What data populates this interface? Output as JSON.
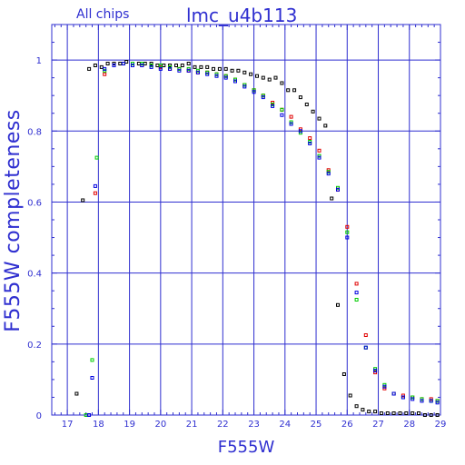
{
  "chart_data": {
    "type": "scatter",
    "title": "lmc_u4b113",
    "subtitle": "All chips",
    "xlabel": "F555W",
    "ylabel": "F555W  completeness",
    "xlim": [
      16.5,
      29
    ],
    "ylim": [
      0,
      1.1
    ],
    "x_ticks": [
      "17",
      "18",
      "19",
      "20",
      "21",
      "22",
      "23",
      "24",
      "25",
      "26",
      "27",
      "28",
      "29"
    ],
    "y_ticks": [
      "0",
      "0.2",
      "0.4",
      "0.6",
      "0.8",
      "1"
    ],
    "grid": true,
    "series": [
      {
        "color": "#000000",
        "points": [
          [
            17.3,
            0.06
          ],
          [
            17.5,
            0.605
          ],
          [
            17.7,
            0.975
          ],
          [
            17.9,
            0.985
          ],
          [
            18.1,
            0.98
          ],
          [
            18.3,
            0.99
          ],
          [
            18.5,
            0.99
          ],
          [
            18.7,
            0.99
          ],
          [
            18.9,
            0.995
          ],
          [
            19.1,
            0.99
          ],
          [
            19.3,
            0.99
          ],
          [
            19.5,
            0.99
          ],
          [
            19.7,
            0.99
          ],
          [
            19.9,
            0.985
          ],
          [
            20.1,
            0.985
          ],
          [
            20.3,
            0.985
          ],
          [
            20.5,
            0.985
          ],
          [
            20.7,
            0.985
          ],
          [
            20.9,
            0.99
          ],
          [
            21.1,
            0.98
          ],
          [
            21.3,
            0.98
          ],
          [
            21.5,
            0.98
          ],
          [
            21.7,
            0.975
          ],
          [
            21.9,
            0.975
          ],
          [
            22.1,
            0.975
          ],
          [
            22.3,
            0.97
          ],
          [
            22.5,
            0.97
          ],
          [
            22.7,
            0.965
          ],
          [
            22.9,
            0.96
          ],
          [
            23.1,
            0.955
          ],
          [
            23.3,
            0.95
          ],
          [
            23.5,
            0.945
          ],
          [
            23.7,
            0.95
          ],
          [
            23.9,
            0.935
          ],
          [
            24.1,
            0.915
          ],
          [
            24.3,
            0.915
          ],
          [
            24.5,
            0.895
          ],
          [
            24.7,
            0.875
          ],
          [
            24.9,
            0.855
          ],
          [
            25.1,
            0.835
          ],
          [
            25.3,
            0.815
          ],
          [
            25.5,
            0.61
          ],
          [
            25.7,
            0.31
          ],
          [
            25.9,
            0.115
          ],
          [
            26.1,
            0.055
          ],
          [
            26.3,
            0.025
          ],
          [
            26.5,
            0.015
          ],
          [
            26.7,
            0.01
          ],
          [
            26.9,
            0.01
          ],
          [
            27.1,
            0.005
          ],
          [
            27.3,
            0.005
          ],
          [
            27.5,
            0.005
          ],
          [
            27.7,
            0.005
          ],
          [
            27.9,
            0.005
          ],
          [
            28.1,
            0.005
          ],
          [
            28.3,
            0.005
          ],
          [
            28.5,
            0.0
          ],
          [
            28.7,
            0.0
          ],
          [
            28.9,
            0.0
          ]
        ]
      },
      {
        "color": "#e00000",
        "points": [
          [
            17.9,
            0.625
          ],
          [
            18.2,
            0.96
          ],
          [
            18.5,
            0.985
          ],
          [
            18.8,
            0.99
          ],
          [
            19.1,
            0.99
          ],
          [
            19.4,
            0.985
          ],
          [
            19.7,
            0.985
          ],
          [
            20.0,
            0.98
          ],
          [
            20.3,
            0.975
          ],
          [
            20.6,
            0.975
          ],
          [
            20.9,
            0.97
          ],
          [
            21.2,
            0.965
          ],
          [
            21.5,
            0.965
          ],
          [
            21.8,
            0.96
          ],
          [
            22.1,
            0.955
          ],
          [
            22.4,
            0.945
          ],
          [
            22.7,
            0.93
          ],
          [
            23.0,
            0.915
          ],
          [
            23.3,
            0.9
          ],
          [
            23.6,
            0.88
          ],
          [
            23.9,
            0.86
          ],
          [
            24.2,
            0.84
          ],
          [
            24.5,
            0.805
          ],
          [
            24.8,
            0.78
          ],
          [
            25.1,
            0.745
          ],
          [
            25.4,
            0.69
          ],
          [
            25.7,
            0.635
          ],
          [
            26.0,
            0.53
          ],
          [
            26.3,
            0.37
          ],
          [
            26.6,
            0.225
          ],
          [
            26.9,
            0.12
          ],
          [
            27.2,
            0.075
          ],
          [
            27.5,
            0.06
          ],
          [
            27.8,
            0.055
          ],
          [
            28.1,
            0.05
          ],
          [
            28.4,
            0.045
          ],
          [
            28.7,
            0.045
          ],
          [
            28.9,
            0.04
          ]
        ]
      },
      {
        "color": "#00cc00",
        "points": [
          [
            17.6,
            0.0
          ],
          [
            17.8,
            0.155
          ],
          [
            17.95,
            0.725
          ],
          [
            18.2,
            0.97
          ],
          [
            18.5,
            0.985
          ],
          [
            18.8,
            0.99
          ],
          [
            19.1,
            0.99
          ],
          [
            19.4,
            0.99
          ],
          [
            19.7,
            0.985
          ],
          [
            20.0,
            0.985
          ],
          [
            20.3,
            0.98
          ],
          [
            20.6,
            0.975
          ],
          [
            20.9,
            0.975
          ],
          [
            21.2,
            0.97
          ],
          [
            21.5,
            0.965
          ],
          [
            21.8,
            0.96
          ],
          [
            22.1,
            0.955
          ],
          [
            22.4,
            0.945
          ],
          [
            22.7,
            0.93
          ],
          [
            23.0,
            0.915
          ],
          [
            23.3,
            0.9
          ],
          [
            23.6,
            0.875
          ],
          [
            23.9,
            0.86
          ],
          [
            24.2,
            0.825
          ],
          [
            24.5,
            0.795
          ],
          [
            24.8,
            0.77
          ],
          [
            25.1,
            0.73
          ],
          [
            25.4,
            0.685
          ],
          [
            25.7,
            0.64
          ],
          [
            26.0,
            0.515
          ],
          [
            26.3,
            0.325
          ],
          [
            26.6,
            0.19
          ],
          [
            26.9,
            0.13
          ],
          [
            27.2,
            0.085
          ],
          [
            27.5,
            0.06
          ],
          [
            27.8,
            0.05
          ],
          [
            28.1,
            0.05
          ],
          [
            28.4,
            0.045
          ],
          [
            28.7,
            0.04
          ],
          [
            28.9,
            0.04
          ]
        ]
      },
      {
        "color": "#0000e0",
        "points": [
          [
            17.7,
            0.0
          ],
          [
            17.8,
            0.105
          ],
          [
            17.9,
            0.645
          ],
          [
            18.2,
            0.975
          ],
          [
            18.5,
            0.985
          ],
          [
            18.8,
            0.99
          ],
          [
            19.1,
            0.985
          ],
          [
            19.4,
            0.985
          ],
          [
            19.7,
            0.98
          ],
          [
            20.0,
            0.975
          ],
          [
            20.3,
            0.975
          ],
          [
            20.6,
            0.97
          ],
          [
            20.9,
            0.97
          ],
          [
            21.2,
            0.965
          ],
          [
            21.5,
            0.96
          ],
          [
            21.8,
            0.955
          ],
          [
            22.1,
            0.95
          ],
          [
            22.4,
            0.94
          ],
          [
            22.7,
            0.925
          ],
          [
            23.0,
            0.91
          ],
          [
            23.3,
            0.895
          ],
          [
            23.6,
            0.87
          ],
          [
            23.9,
            0.845
          ],
          [
            24.2,
            0.82
          ],
          [
            24.5,
            0.8
          ],
          [
            24.8,
            0.765
          ],
          [
            25.1,
            0.725
          ],
          [
            25.4,
            0.68
          ],
          [
            25.7,
            0.635
          ],
          [
            26.0,
            0.5
          ],
          [
            26.3,
            0.345
          ],
          [
            26.6,
            0.19
          ],
          [
            26.9,
            0.125
          ],
          [
            27.2,
            0.08
          ],
          [
            27.5,
            0.06
          ],
          [
            27.8,
            0.05
          ],
          [
            28.1,
            0.045
          ],
          [
            28.4,
            0.04
          ],
          [
            28.7,
            0.04
          ],
          [
            28.9,
            0.035
          ]
        ]
      }
    ]
  }
}
